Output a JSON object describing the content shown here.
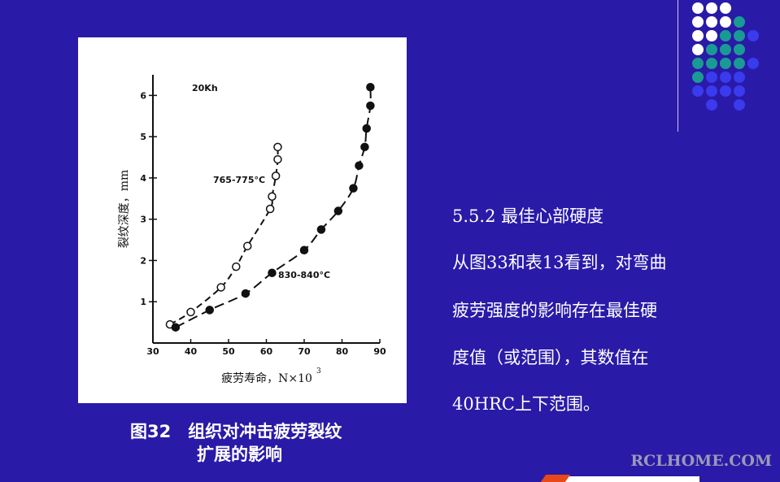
{
  "chart_data": {
    "type": "scatter",
    "title": "20Kh",
    "xlabel": "疲劳寿命，N×10",
    "xlabel_sup": "3",
    "ylabel": "裂纹深度，mm",
    "xlim": [
      30,
      90
    ],
    "ylim": [
      0,
      6.5
    ],
    "x_ticks": [
      30,
      40,
      50,
      60,
      70,
      80,
      90
    ],
    "y_ticks": [
      1,
      2,
      3,
      4,
      5,
      6
    ],
    "grid": false,
    "series": [
      {
        "name": "765-775°C",
        "marker": "open-circle",
        "points": [
          [
            34.5,
            0.45
          ],
          [
            40,
            0.75
          ],
          [
            48,
            1.35
          ],
          [
            52,
            1.85
          ],
          [
            55,
            2.35
          ],
          [
            61,
            3.25
          ],
          [
            61.5,
            3.55
          ],
          [
            62.5,
            4.05
          ],
          [
            63,
            4.45
          ],
          [
            63,
            4.75
          ]
        ]
      },
      {
        "name": "830-840°C",
        "marker": "filled-circle",
        "points": [
          [
            36,
            0.38
          ],
          [
            45,
            0.8
          ],
          [
            54.5,
            1.2
          ],
          [
            61.5,
            1.7
          ],
          [
            70,
            2.25
          ],
          [
            74.5,
            2.75
          ],
          [
            79,
            3.2
          ],
          [
            83,
            3.75
          ],
          [
            84.5,
            4.3
          ],
          [
            86,
            4.75
          ],
          [
            86.5,
            5.2
          ],
          [
            87.5,
            5.75
          ],
          [
            87.5,
            6.2
          ]
        ]
      }
    ]
  },
  "caption": {
    "line1": "图32　组织对冲击疲劳裂纹",
    "line2": "扩展的影响"
  },
  "content": {
    "section_title": "5.5.2  最佳心部硬度",
    "lines": [
      "从图33和表13看到，对弯曲",
      "疲劳强度的影响存在最佳硬",
      "度值（或范围），其数值在",
      "40HRC上下范围。"
    ]
  },
  "watermark": "RCLHOME.COM",
  "colors": {
    "background": "#2a1aa8",
    "dot_white": "#ffffff",
    "dot_teal": "#1a9a94",
    "dot_blue": "#3a3aee"
  }
}
